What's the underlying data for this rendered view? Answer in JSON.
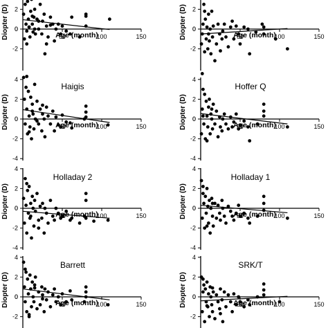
{
  "chart_data": [
    {
      "type": "scatter",
      "title": "",
      "xlabel": "Age (month)",
      "ylabel": "Diopter (D)",
      "xlim": [
        0,
        150
      ],
      "ylim": [
        -5,
        5
      ],
      "xticks": [
        50,
        100,
        150
      ],
      "yticks": [
        2,
        0,
        -2
      ],
      "fit": [
        [
          0,
          0.95
        ],
        [
          110,
          -0.05
        ]
      ],
      "x": [
        1,
        2,
        3,
        4,
        5,
        6,
        7,
        8,
        9,
        10,
        11,
        12,
        13,
        14,
        15,
        16,
        18,
        20,
        22,
        24,
        25,
        27,
        28,
        30,
        32,
        35,
        38,
        40,
        42,
        45,
        48,
        50,
        55,
        60,
        62,
        72,
        80,
        80,
        80,
        110,
        5,
        8,
        12,
        15,
        20,
        30,
        35
      ],
      "y": [
        1.5,
        -1.0,
        2.5,
        0.5,
        -1.5,
        2.8,
        1.0,
        0.2,
        -0.8,
        1.8,
        3.0,
        0.5,
        -0.3,
        1.2,
        2.0,
        -0.5,
        1.0,
        0.0,
        2.5,
        -0.5,
        0.8,
        1.5,
        -2.5,
        0.3,
        -0.8,
        1.2,
        0.5,
        -1.2,
        0.0,
        0.5,
        -0.5,
        0.3,
        -0.2,
        -0.5,
        1.2,
        -0.8,
        1.3,
        1.5,
        0.3,
        1.0,
        -0.2,
        0.2,
        1.3,
        0.0,
        0.8,
        -1.5,
        0.4
      ]
    },
    {
      "type": "scatter",
      "title": "",
      "xlabel": "Age (month)",
      "ylabel": "Diopter (D)",
      "xlim": [
        0,
        150
      ],
      "ylim": [
        -5,
        5
      ],
      "xticks": [
        50,
        100,
        150
      ],
      "yticks": [
        2,
        0,
        -2
      ],
      "fit": [
        [
          0,
          -0.5
        ],
        [
          110,
          0.05
        ]
      ],
      "x": [
        1,
        2,
        3,
        4,
        5,
        6,
        7,
        8,
        9,
        10,
        11,
        12,
        13,
        14,
        15,
        16,
        18,
        20,
        22,
        24,
        25,
        27,
        28,
        30,
        32,
        35,
        38,
        40,
        42,
        45,
        48,
        50,
        55,
        60,
        62,
        70,
        78,
        80,
        80,
        80,
        95,
        110,
        2,
        5,
        10
      ],
      "y": [
        -1.5,
        -0.5,
        0.5,
        2.5,
        -2.3,
        1.0,
        -1.0,
        0.2,
        -2.0,
        1.5,
        -1.2,
        0.0,
        -2.5,
        1.8,
        -0.8,
        0.3,
        -3.2,
        -1.5,
        0.5,
        -0.5,
        -2.2,
        -1.0,
        -0.2,
        0.5,
        -0.8,
        -1.8,
        0.2,
        0.8,
        -1.0,
        0.3,
        -0.5,
        -1.5,
        0.2,
        0.0,
        -2.5,
        -0.3,
        0.5,
        3.2,
        0.2,
        -0.5,
        -1.0,
        -2.0,
        -4.5,
        1.8,
        -0.5
      ]
    },
    {
      "type": "scatter",
      "title": "Haigis",
      "xlabel": "Age (month)",
      "ylabel": "Diopter (D)",
      "xlim": [
        0,
        150
      ],
      "ylim": [
        -5,
        5
      ],
      "xticks": [
        50,
        100,
        150
      ],
      "yticks": [
        4,
        2,
        0,
        -2,
        -4
      ],
      "fit": [
        [
          0,
          0.95
        ],
        [
          110,
          -0.35
        ]
      ],
      "x": [
        1,
        2,
        3,
        4,
        5,
        6,
        7,
        8,
        9,
        10,
        11,
        12,
        13,
        14,
        15,
        16,
        18,
        20,
        22,
        24,
        25,
        27,
        28,
        30,
        32,
        35,
        38,
        40,
        42,
        45,
        48,
        50,
        55,
        60,
        62,
        78,
        80,
        80,
        80,
        108,
        5,
        8,
        12,
        18,
        25
      ],
      "y": [
        4.2,
        2.0,
        -0.5,
        3.2,
        1.0,
        -1.5,
        2.8,
        0.3,
        -0.8,
        2.2,
        -2.0,
        1.5,
        0.5,
        -1.0,
        3.5,
        0.0,
        1.8,
        -0.5,
        1.0,
        -1.2,
        0.5,
        0.0,
        -1.8,
        1.2,
        0.3,
        -0.5,
        0.8,
        -1.2,
        0.2,
        -0.6,
        -0.8,
        0.4,
        -0.3,
        -0.4,
        -0.9,
        0.0,
        1.3,
        0.7,
        0.2,
        -0.6,
        4.3,
        -1.3,
        0.8,
        -0.2,
        1.4
      ]
    },
    {
      "type": "scatter",
      "title": "Hoffer Q",
      "xlabel": "Age (month)",
      "ylabel": "Diopter (D)",
      "xlim": [
        0,
        150
      ],
      "ylim": [
        -5,
        5
      ],
      "xticks": [
        50,
        100,
        150
      ],
      "yticks": [
        4,
        2,
        0,
        -2,
        -4
      ],
      "fit": [
        [
          0,
          0.55
        ],
        [
          110,
          -0.5
        ]
      ],
      "x": [
        1,
        2,
        3,
        4,
        5,
        6,
        7,
        8,
        9,
        10,
        11,
        12,
        13,
        14,
        15,
        16,
        18,
        20,
        22,
        24,
        25,
        27,
        28,
        30,
        32,
        35,
        38,
        40,
        42,
        45,
        48,
        50,
        55,
        60,
        62,
        72,
        80,
        80,
        80,
        110,
        3,
        8,
        14
      ],
      "y": [
        -1.5,
        1.0,
        3.0,
        -0.5,
        2.5,
        -2.0,
        1.8,
        0.3,
        -0.8,
        1.2,
        2.0,
        -1.5,
        0.5,
        0.0,
        -1.0,
        1.5,
        -0.5,
        0.8,
        -1.8,
        0.2,
        -0.8,
        -1.2,
        0.0,
        0.5,
        -0.5,
        -1.0,
        0.2,
        -0.8,
        -0.3,
        0.5,
        -1.0,
        -0.6,
        -0.2,
        -0.8,
        -2.2,
        -0.5,
        1.5,
        0.8,
        0.3,
        -0.8,
        0.3,
        -2.2,
        1.0
      ]
    },
    {
      "type": "scatter",
      "title": "Holladay 2",
      "xlabel": "Age (month)",
      "ylabel": "Diopter (D)",
      "xlim": [
        0,
        150
      ],
      "ylim": [
        -5,
        5
      ],
      "xticks": [
        50,
        100,
        150
      ],
      "yticks": [
        4,
        2,
        0,
        -2,
        -4
      ],
      "fit": [
        [
          0,
          -0.3
        ],
        [
          110,
          -1.0
        ]
      ],
      "x": [
        1,
        2,
        3,
        4,
        5,
        6,
        7,
        8,
        9,
        10,
        11,
        12,
        13,
        14,
        15,
        16,
        18,
        20,
        22,
        24,
        25,
        27,
        28,
        30,
        32,
        35,
        38,
        40,
        42,
        45,
        48,
        50,
        55,
        60,
        62,
        72,
        78,
        80,
        80,
        80,
        90,
        108,
        5,
        10,
        20
      ],
      "y": [
        1.0,
        -1.5,
        3.0,
        0.3,
        -2.5,
        1.8,
        -0.5,
        2.2,
        -1.0,
        0.5,
        -3.0,
        1.2,
        0.0,
        -1.8,
        0.8,
        -0.3,
        1.5,
        -2.0,
        0.2,
        -1.0,
        0.5,
        -2.5,
        0.0,
        -0.5,
        -1.5,
        0.8,
        -0.8,
        -1.2,
        0.0,
        -0.5,
        -1.0,
        -0.8,
        -0.3,
        -1.2,
        -1.0,
        -1.5,
        -0.8,
        1.5,
        0.8,
        -1.0,
        -1.3,
        -1.2,
        2.5,
        -0.8,
        -1.2
      ]
    },
    {
      "type": "scatter",
      "title": "Holladay 1",
      "xlabel": "Age (month)",
      "ylabel": "Diopter (D)",
      "xlim": [
        0,
        150
      ],
      "ylim": [
        -5,
        5
      ],
      "xticks": [
        50,
        100,
        150
      ],
      "yticks": [
        4,
        2,
        0,
        -2,
        -4
      ],
      "fit": [
        [
          0,
          0.3
        ],
        [
          110,
          -0.45
        ]
      ],
      "x": [
        1,
        2,
        3,
        4,
        5,
        6,
        7,
        8,
        9,
        10,
        11,
        12,
        13,
        14,
        15,
        16,
        18,
        20,
        22,
        24,
        25,
        27,
        28,
        30,
        32,
        35,
        38,
        40,
        42,
        45,
        48,
        50,
        55,
        60,
        62,
        72,
        80,
        80,
        80,
        110,
        3,
        8,
        15
      ],
      "y": [
        2.8,
        -1.0,
        1.5,
        0.5,
        -2.0,
        1.2,
        -0.5,
        2.0,
        0.2,
        -1.5,
        0.8,
        -2.5,
        0.0,
        1.0,
        -0.8,
        -1.8,
        0.5,
        -1.0,
        0.3,
        -0.5,
        -1.2,
        0.8,
        0.0,
        -0.8,
        -1.5,
        0.2,
        -0.3,
        -0.8,
        -1.2,
        -0.5,
        0.3,
        -0.8,
        -0.5,
        -1.0,
        -1.5,
        -0.8,
        1.2,
        0.5,
        -0.2,
        -1.0,
        2.2,
        -1.8,
        0.5
      ]
    },
    {
      "type": "scatter",
      "title": "Barrett",
      "xlabel": "Age (month)",
      "ylabel": "Diopter (D)",
      "xlim": [
        0,
        150
      ],
      "ylim": [
        -5,
        5
      ],
      "xticks": [
        50,
        100,
        150
      ],
      "yticks": [
        4,
        2,
        0,
        -2,
        -4
      ],
      "fit": [
        [
          0,
          0.8
        ],
        [
          110,
          -0.3
        ]
      ],
      "x": [
        1,
        2,
        3,
        4,
        5,
        6,
        7,
        8,
        9,
        10,
        11,
        12,
        13,
        14,
        15,
        16,
        18,
        20,
        22,
        24,
        25,
        27,
        28,
        30,
        32,
        35,
        38,
        40,
        42,
        45,
        48,
        50,
        55,
        60,
        62,
        78,
        80,
        80,
        80,
        108,
        3,
        8,
        15,
        25
      ],
      "y": [
        3.5,
        1.0,
        -0.5,
        2.5,
        -1.5,
        1.8,
        0.3,
        -2.0,
        2.2,
        0.8,
        -1.0,
        1.5,
        0.0,
        -0.5,
        1.2,
        2.0,
        -1.2,
        0.5,
        -0.8,
        1.0,
        0.2,
        -1.5,
        0.8,
        -0.3,
        0.5,
        -1.0,
        0.2,
        0.8,
        -0.5,
        0.0,
        -0.8,
        0.3,
        -0.5,
        0.6,
        -0.3,
        -0.5,
        1.0,
        0.5,
        0.0,
        -0.8,
        2.8,
        -1.8,
        0.9,
        -0.2
      ]
    },
    {
      "type": "scatter",
      "title": "SRK/T",
      "xlabel": "Age (month)",
      "ylabel": "Diopter (D)",
      "xlim": [
        0,
        150
      ],
      "ylim": [
        -5,
        5
      ],
      "xticks": [
        50,
        100,
        150
      ],
      "yticks": [
        4,
        2,
        0,
        -2,
        -4
      ],
      "fit": [
        [
          0,
          -0.4
        ],
        [
          110,
          0.05
        ]
      ],
      "x": [
        1,
        2,
        3,
        4,
        5,
        6,
        7,
        8,
        9,
        10,
        11,
        12,
        13,
        14,
        15,
        16,
        18,
        20,
        22,
        24,
        25,
        27,
        28,
        30,
        32,
        35,
        38,
        40,
        42,
        45,
        48,
        50,
        55,
        60,
        62,
        72,
        80,
        80,
        80,
        100,
        3,
        8,
        15,
        25
      ],
      "y": [
        2.0,
        -1.5,
        0.5,
        1.2,
        -2.5,
        0.8,
        -0.5,
        1.5,
        -1.0,
        0.3,
        -2.0,
        1.0,
        0.0,
        -0.8,
        -1.5,
        0.5,
        -2.2,
        0.2,
        -0.5,
        -1.2,
        0.8,
        -0.3,
        -2.5,
        0.5,
        -1.0,
        0.2,
        -0.5,
        -1.5,
        0.3,
        -0.8,
        0.0,
        -0.5,
        -1.0,
        -0.3,
        -0.8,
        0.0,
        1.3,
        0.7,
        0.2,
        -0.5,
        1.8,
        -0.9,
        0.9,
        -1.7
      ]
    }
  ]
}
